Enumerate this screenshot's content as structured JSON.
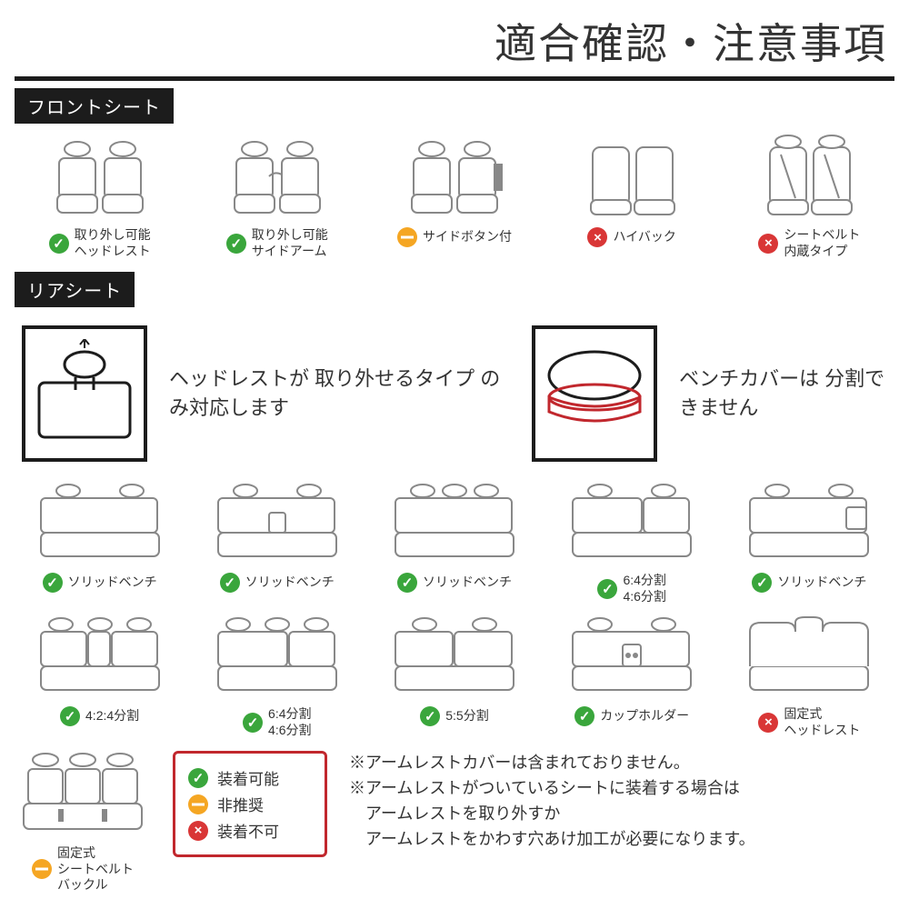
{
  "title": "適合確認・注意事項",
  "front": {
    "heading": "フロントシート",
    "items": [
      {
        "status": "ok",
        "label": "取り外し可能\nヘッドレスト"
      },
      {
        "status": "ok",
        "label": "取り外し可能\nサイドアーム"
      },
      {
        "status": "warn",
        "label": "サイドボタン付"
      },
      {
        "status": "no",
        "label": "ハイバック"
      },
      {
        "status": "no",
        "label": "シートベルト\n内蔵タイプ"
      }
    ]
  },
  "rear": {
    "heading": "リアシート",
    "info1": "ヘッドレストが\n取り外せるタイプ\nのみ対応します",
    "info2": "ベンチカバーは\n分割できません",
    "items": [
      {
        "status": "ok",
        "label": "ソリッドベンチ"
      },
      {
        "status": "ok",
        "label": "ソリッドベンチ"
      },
      {
        "status": "ok",
        "label": "ソリッドベンチ"
      },
      {
        "status": "ok",
        "label": "6:4分割\n4:6分割"
      },
      {
        "status": "ok",
        "label": "ソリッドベンチ"
      },
      {
        "status": "ok",
        "label": "4:2:4分割"
      },
      {
        "status": "ok",
        "label": "6:4分割\n4:6分割"
      },
      {
        "status": "ok",
        "label": "5:5分割"
      },
      {
        "status": "ok",
        "label": "カップホルダー"
      },
      {
        "status": "no",
        "label": "固定式\nヘッドレスト"
      }
    ],
    "extra": {
      "status": "warn",
      "label": "固定式\nシートベルト\nバックル"
    }
  },
  "legend": {
    "ok": "装着可能",
    "warn": "非推奨",
    "no": "装着不可"
  },
  "notes": "※アームレストカバーは含まれておりません。\n※アームレストがついているシートに装着する場合は\n　アームレストを取り外すか\n　アームレストをかわす穴あけ加工が必要になります。"
}
